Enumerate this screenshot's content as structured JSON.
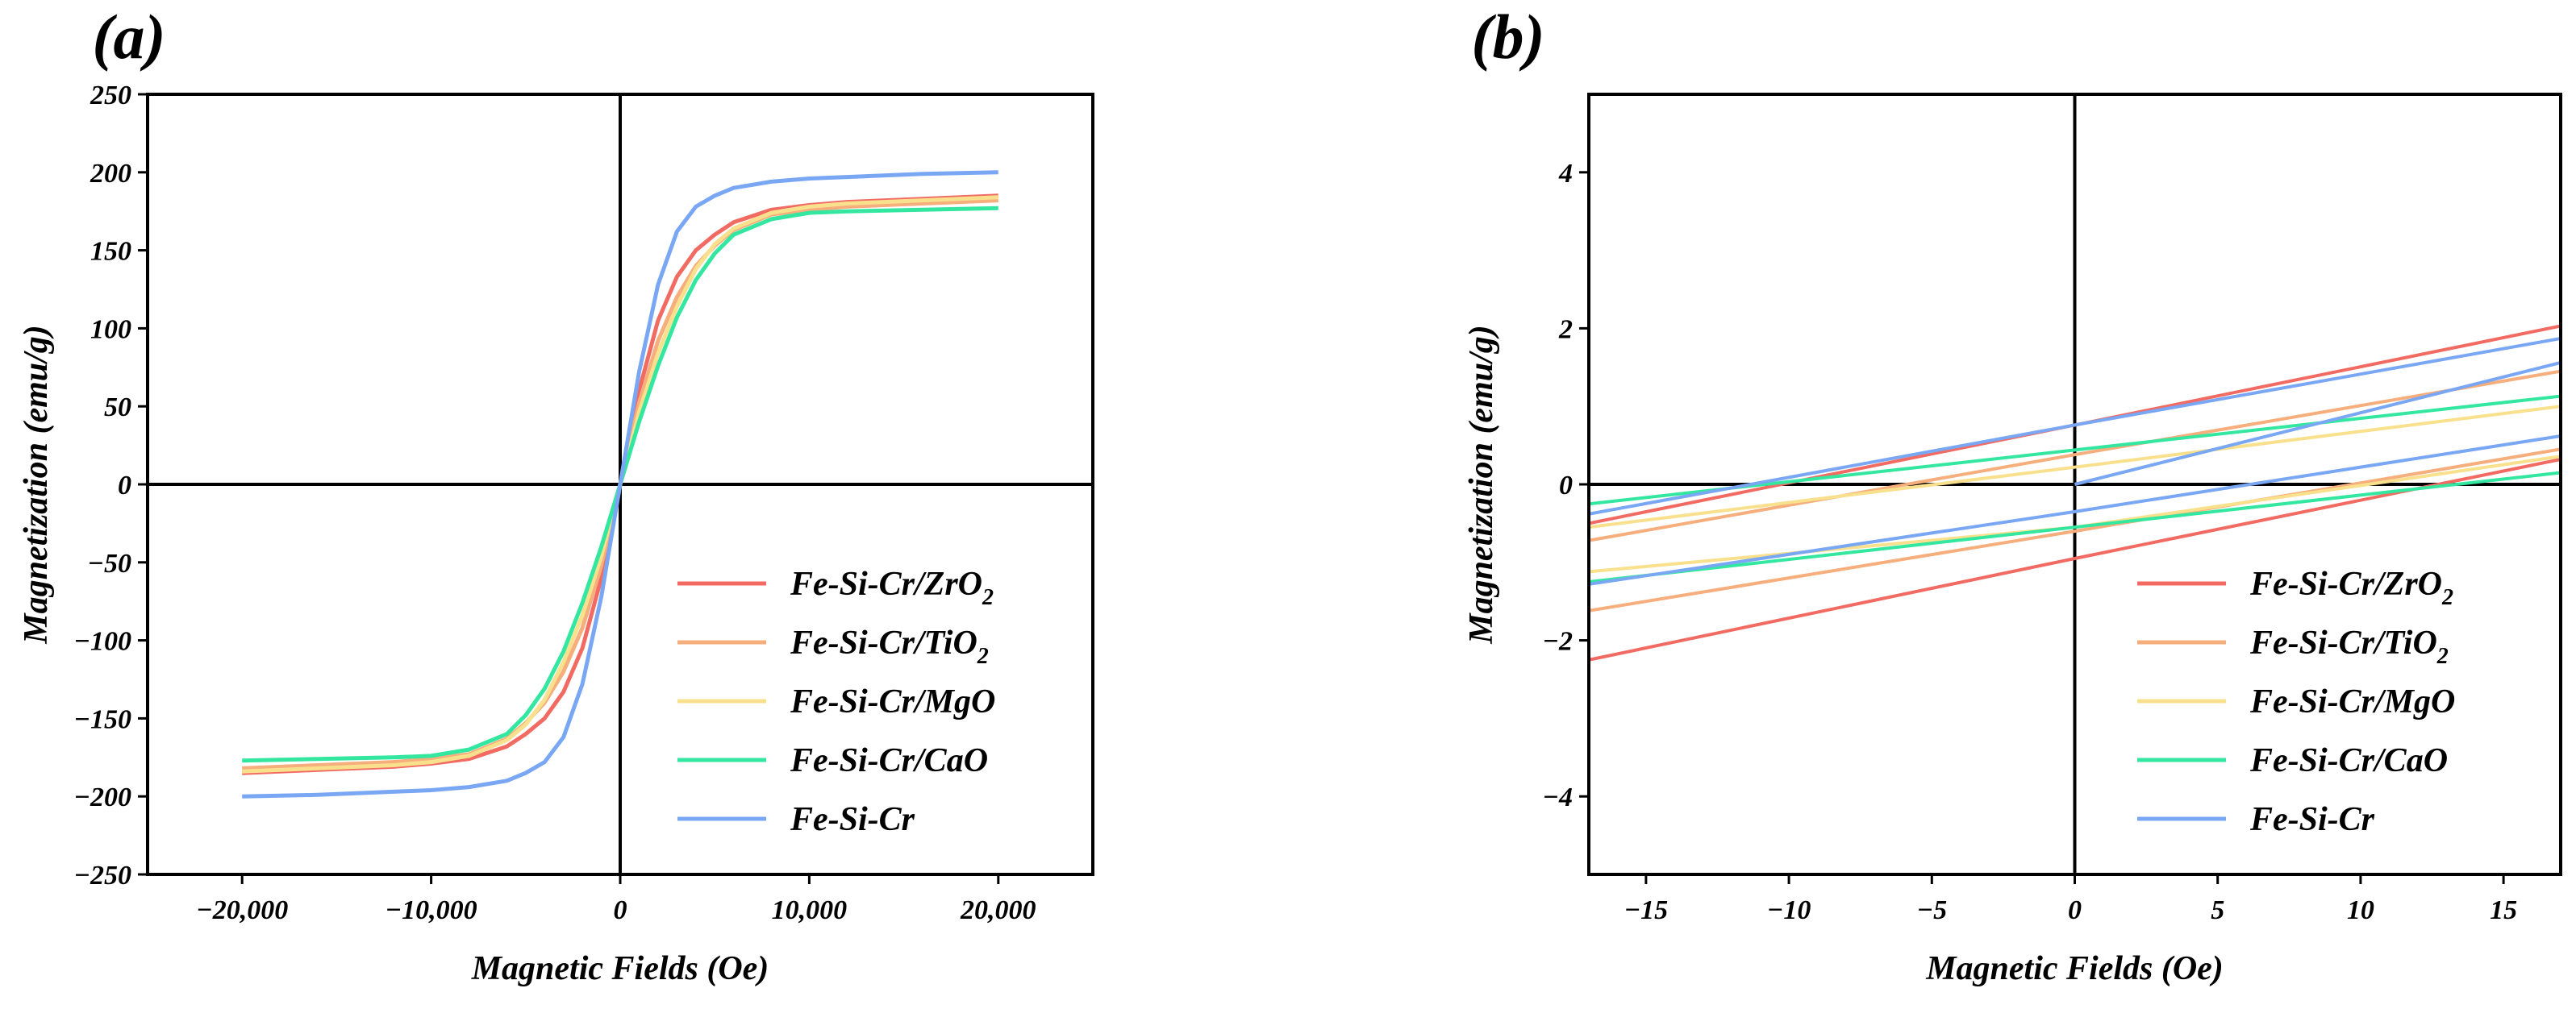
{
  "colors": {
    "Fe-Si-Cr/ZrO2": "#f26b63",
    "Fe-Si-Cr/TiO2": "#f6ae7c",
    "Fe-Si-Cr/MgO": "#f8e08d",
    "Fe-Si-Cr/CaO": "#33e7a0",
    "Fe-Si-Cr": "#7aa7f4"
  },
  "legend": [
    {
      "key": "Fe-Si-Cr/ZrO2",
      "base": "Fe-Si-Cr/ZrO",
      "sub": "2"
    },
    {
      "key": "Fe-Si-Cr/TiO2",
      "base": "Fe-Si-Cr/TiO",
      "sub": "2"
    },
    {
      "key": "Fe-Si-Cr/MgO",
      "base": "Fe-Si-Cr/MgO",
      "sub": ""
    },
    {
      "key": "Fe-Si-Cr/CaO",
      "base": "Fe-Si-Cr/CaO",
      "sub": ""
    },
    {
      "key": "Fe-Si-Cr",
      "base": "Fe-Si-Cr",
      "sub": ""
    }
  ],
  "chart_data": [
    {
      "panel": "(a)",
      "type": "line",
      "xlabel": "Magnetic Fields (Oe)",
      "ylabel": "Magnetization (emu/g)",
      "xlim": [
        -25000,
        25000
      ],
      "ylim": [
        -250,
        250
      ],
      "xticks": [
        -20000,
        -10000,
        0,
        10000,
        20000
      ],
      "xtick_labels": [
        "−20,000",
        "−10,000",
        "0",
        "10,000",
        "20,000"
      ],
      "yticks": [
        -250,
        -200,
        -150,
        -100,
        -50,
        0,
        50,
        100,
        150,
        200,
        250
      ],
      "ytick_labels": [
        "−250",
        "−200",
        "−150",
        "−100",
        "−50",
        "0",
        "50",
        "100",
        "150",
        "200",
        "250"
      ],
      "legend_position": "lower-right",
      "x": [
        -20000,
        -16000,
        -12000,
        -10000,
        -8000,
        -6000,
        -5000,
        -4000,
        -3000,
        -2000,
        -1000,
        0,
        1000,
        2000,
        3000,
        4000,
        5000,
        6000,
        8000,
        10000,
        12000,
        16000,
        20000
      ],
      "series": [
        {
          "name": "Fe-Si-Cr/ZrO2",
          "values": [
            -185,
            -183,
            -181,
            -179,
            -176,
            -168,
            -160,
            -150,
            -133,
            -105,
            -60,
            0,
            60,
            105,
            133,
            150,
            160,
            168,
            176,
            179,
            181,
            183,
            185
          ]
        },
        {
          "name": "Fe-Si-Cr/TiO2",
          "values": [
            -182,
            -180,
            -178,
            -176,
            -173,
            -163,
            -153,
            -140,
            -120,
            -92,
            -52,
            0,
            52,
            92,
            120,
            140,
            153,
            163,
            173,
            176,
            178,
            180,
            182
          ]
        },
        {
          "name": "Fe-Si-Cr/MgO",
          "values": [
            -184,
            -182,
            -180,
            -178,
            -174,
            -164,
            -154,
            -138,
            -114,
            -84,
            -46,
            0,
            46,
            84,
            114,
            138,
            154,
            164,
            174,
            178,
            180,
            182,
            184
          ]
        },
        {
          "name": "Fe-Si-Cr/CaO",
          "values": [
            -177,
            -176,
            -175,
            -174,
            -170,
            -160,
            -148,
            -131,
            -107,
            -76,
            -40,
            0,
            40,
            76,
            107,
            131,
            148,
            160,
            170,
            174,
            175,
            176,
            177
          ]
        },
        {
          "name": "Fe-Si-Cr",
          "values": [
            -200,
            -199,
            -197,
            -196,
            -194,
            -190,
            -185,
            -178,
            -162,
            -128,
            -72,
            0,
            72,
            128,
            162,
            178,
            185,
            190,
            194,
            196,
            197,
            199,
            200
          ]
        }
      ]
    },
    {
      "panel": "(b)",
      "type": "line",
      "xlabel": "Magnetic Fields (Oe)",
      "ylabel": "Magnetization (emu/g)",
      "xlim": [
        -17,
        17
      ],
      "ylim": [
        -5,
        5
      ],
      "xticks": [
        -15,
        -10,
        -5,
        0,
        5,
        10,
        15
      ],
      "xtick_labels": [
        "−15",
        "−10",
        "−5",
        "0",
        "5",
        "10",
        "15"
      ],
      "yticks": [
        -4,
        -2,
        0,
        2,
        4
      ],
      "ytick_labels": [
        "−4",
        "−2",
        "0",
        "2",
        "4"
      ],
      "legend_position": "lower-right",
      "series": [
        {
          "name": "Fe-Si-Cr/ZrO2",
          "segments": [
            {
              "x": [
                -17,
                0,
                17
              ],
              "y": [
                -0.5,
                0.76,
                2.03
              ]
            },
            {
              "x": [
                -17,
                0,
                17
              ],
              "y": [
                -2.25,
                -0.95,
                0.32
              ]
            }
          ]
        },
        {
          "name": "Fe-Si-Cr/TiO2",
          "segments": [
            {
              "x": [
                -17,
                0,
                17
              ],
              "y": [
                -0.72,
                0.38,
                1.45
              ]
            },
            {
              "x": [
                -17,
                0,
                17
              ],
              "y": [
                -1.62,
                -0.6,
                0.45
              ]
            }
          ]
        },
        {
          "name": "Fe-Si-Cr/MgO",
          "segments": [
            {
              "x": [
                -17,
                0,
                17
              ],
              "y": [
                -0.55,
                0.22,
                1.0
              ]
            },
            {
              "x": [
                -17,
                0,
                17
              ],
              "y": [
                -1.12,
                -0.55,
                0.36
              ]
            }
          ]
        },
        {
          "name": "Fe-Si-Cr/CaO",
          "segments": [
            {
              "x": [
                -17,
                0,
                17
              ],
              "y": [
                -0.25,
                0.44,
                1.13
              ]
            },
            {
              "x": [
                -17,
                0,
                17
              ],
              "y": [
                -1.25,
                -0.55,
                0.15
              ]
            }
          ]
        },
        {
          "name": "Fe-Si-Cr",
          "segments": [
            {
              "x": [
                -17,
                0,
                17
              ],
              "y": [
                -0.38,
                0.76,
                1.87
              ]
            },
            {
              "x": [
                -17,
                0,
                17
              ],
              "y": [
                -1.28,
                -0.35,
                0.62
              ]
            },
            {
              "x": [
                0,
                17
              ],
              "y": [
                0.0,
                1.56
              ]
            }
          ]
        }
      ]
    }
  ]
}
